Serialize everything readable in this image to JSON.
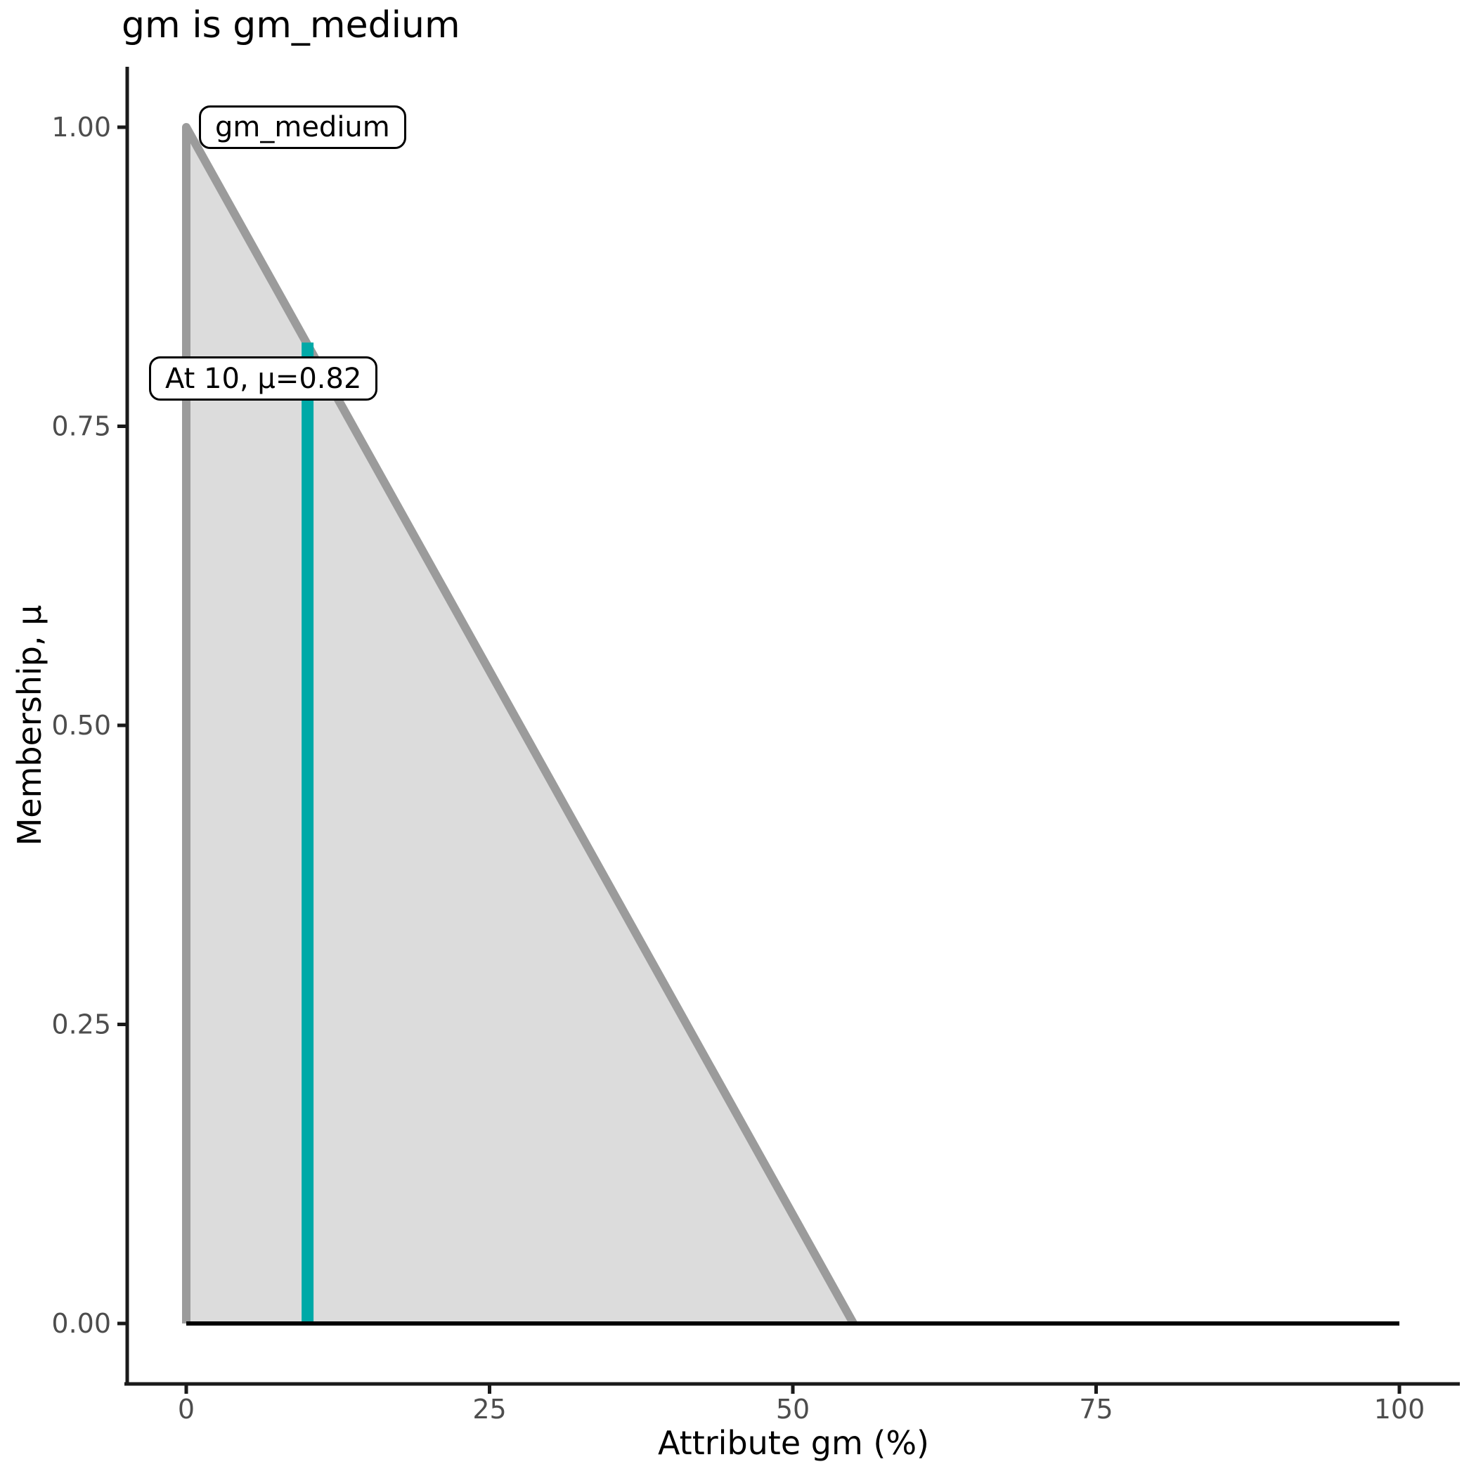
{
  "title": "gm is gm_medium",
  "axes": {
    "x_label": "Attribute gm (%)",
    "y_label": "Membership, μ",
    "x_tick_labels": [
      "0",
      "25",
      "50",
      "75",
      "100"
    ],
    "y_tick_labels": [
      "0.00",
      "0.25",
      "0.50",
      "0.75",
      "1.00"
    ]
  },
  "annotations": {
    "set_label": "gm_medium",
    "point_label": "At 10, μ=0.82"
  },
  "colors": {
    "membership_fill": "#dcdcdc",
    "membership_stroke": "#9b9b9b",
    "marker": "#00a9a7",
    "baseline": "#000000",
    "spine": "#1a1a1a",
    "tick_text": "#4d4d4d"
  },
  "chart_data": {
    "type": "area",
    "title": "gm is gm_medium",
    "xlabel": "Attribute gm (%)",
    "ylabel": "Membership, μ",
    "xlim": [
      0,
      100
    ],
    "ylim": [
      0,
      1
    ],
    "x_ticks": [
      0,
      25,
      50,
      75,
      100
    ],
    "y_ticks": [
      0,
      0.25,
      0.5,
      0.75,
      1
    ],
    "grid": false,
    "series_name": "gm_medium",
    "membership_points": [
      [
        0,
        0
      ],
      [
        0,
        1
      ],
      [
        55,
        0
      ]
    ],
    "baseline_x": [
      0,
      100
    ],
    "marker": {
      "x": 10,
      "mu": 0.82
    }
  }
}
